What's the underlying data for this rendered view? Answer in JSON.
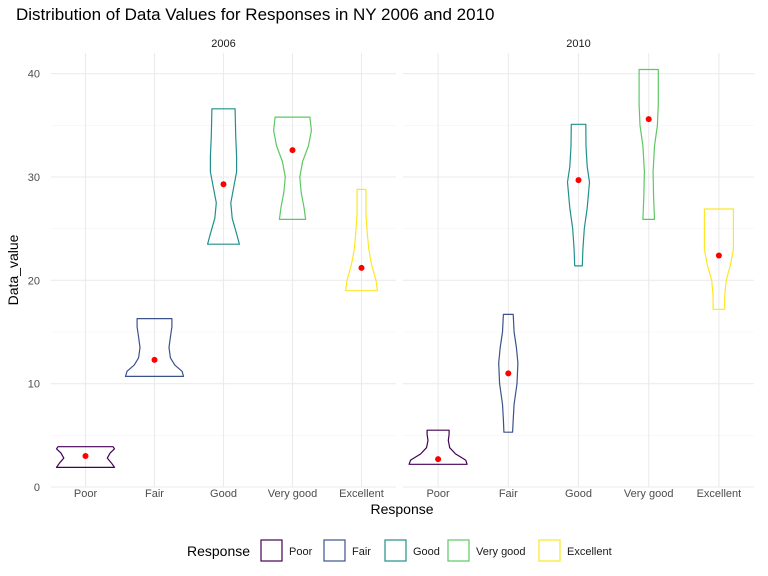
{
  "chart_data": {
    "type": "violin",
    "title": "Distribution of Data Values for Responses in NY 2006 and 2010",
    "xlabel": "Response",
    "ylabel": "Data_value",
    "ylim": [
      0,
      42
    ],
    "yticks": [
      0,
      10,
      20,
      30,
      40
    ],
    "categories": [
      "Poor",
      "Fair",
      "Good",
      "Very good",
      "Excellent"
    ],
    "colors": {
      "Poor": "#440154",
      "Fair": "#3b528b",
      "Good": "#21908c",
      "Very good": "#5dc863",
      "Excellent": "#fde725"
    },
    "point_color": "#ff0000",
    "grid": true,
    "legend": {
      "title": "Response",
      "position": "bottom"
    },
    "facets": [
      {
        "label": "2006",
        "violins": [
          {
            "category": "Poor",
            "min": 1.9,
            "max": 3.9,
            "mean": 3.0,
            "profile": [
              [
                1.9,
                1.0
              ],
              [
                2.3,
                0.9
              ],
              [
                2.8,
                0.75
              ],
              [
                3.3,
                0.85
              ],
              [
                3.7,
                1.0
              ],
              [
                3.9,
                0.95
              ]
            ]
          },
          {
            "category": "Fair",
            "min": 10.7,
            "max": 16.3,
            "mean": 12.3,
            "profile": [
              [
                10.7,
                1.0
              ],
              [
                11.2,
                0.95
              ],
              [
                11.8,
                0.7
              ],
              [
                12.5,
                0.55
              ],
              [
                13.5,
                0.5
              ],
              [
                14.5,
                0.55
              ],
              [
                15.5,
                0.6
              ],
              [
                16.3,
                0.6
              ]
            ]
          },
          {
            "category": "Good",
            "min": 23.5,
            "max": 36.6,
            "mean": 29.3,
            "profile": [
              [
                23.5,
                0.55
              ],
              [
                24.5,
                0.45
              ],
              [
                26.0,
                0.3
              ],
              [
                27.5,
                0.25
              ],
              [
                29.0,
                0.35
              ],
              [
                30.5,
                0.45
              ],
              [
                32.0,
                0.45
              ],
              [
                34.0,
                0.42
              ],
              [
                36.6,
                0.4
              ]
            ]
          },
          {
            "category": "Very good",
            "min": 25.9,
            "max": 35.8,
            "mean": 32.6,
            "profile": [
              [
                25.9,
                0.45
              ],
              [
                27.0,
                0.4
              ],
              [
                28.5,
                0.3
              ],
              [
                30.0,
                0.25
              ],
              [
                31.5,
                0.35
              ],
              [
                33.0,
                0.55
              ],
              [
                34.5,
                0.65
              ],
              [
                35.8,
                0.6
              ]
            ]
          },
          {
            "category": "Excellent",
            "min": 19.0,
            "max": 28.8,
            "mean": 21.2,
            "profile": [
              [
                19.0,
                0.55
              ],
              [
                20.0,
                0.5
              ],
              [
                21.5,
                0.35
              ],
              [
                23.0,
                0.25
              ],
              [
                24.5,
                0.2
              ],
              [
                26.5,
                0.15
              ],
              [
                28.8,
                0.15
              ]
            ]
          }
        ]
      },
      {
        "label": "2010",
        "violins": [
          {
            "category": "Poor",
            "min": 2.2,
            "max": 5.5,
            "mean": 2.7,
            "profile": [
              [
                2.2,
                1.0
              ],
              [
                2.6,
                0.95
              ],
              [
                3.2,
                0.6
              ],
              [
                3.8,
                0.4
              ],
              [
                4.5,
                0.35
              ],
              [
                5.1,
                0.38
              ],
              [
                5.5,
                0.38
              ]
            ]
          },
          {
            "category": "Fair",
            "min": 5.3,
            "max": 16.7,
            "mean": 11.0,
            "profile": [
              [
                5.3,
                0.15
              ],
              [
                6.5,
                0.17
              ],
              [
                8.0,
                0.2
              ],
              [
                10.0,
                0.3
              ],
              [
                12.0,
                0.33
              ],
              [
                13.5,
                0.28
              ],
              [
                15.0,
                0.2
              ],
              [
                16.7,
                0.17
              ]
            ]
          },
          {
            "category": "Good",
            "min": 21.4,
            "max": 35.1,
            "mean": 29.7,
            "profile": [
              [
                21.4,
                0.13
              ],
              [
                23.0,
                0.15
              ],
              [
                25.0,
                0.2
              ],
              [
                27.0,
                0.3
              ],
              [
                29.5,
                0.38
              ],
              [
                31.0,
                0.3
              ],
              [
                33.0,
                0.26
              ],
              [
                35.1,
                0.25
              ]
            ]
          },
          {
            "category": "Very good",
            "min": 25.9,
            "max": 40.4,
            "mean": 35.6,
            "profile": [
              [
                25.9,
                0.2
              ],
              [
                28.0,
                0.17
              ],
              [
                30.5,
                0.15
              ],
              [
                33.0,
                0.2
              ],
              [
                35.0,
                0.3
              ],
              [
                37.0,
                0.33
              ],
              [
                39.0,
                0.33
              ],
              [
                40.4,
                0.33
              ]
            ]
          },
          {
            "category": "Excellent",
            "min": 17.2,
            "max": 26.9,
            "mean": 22.4,
            "profile": [
              [
                17.2,
                0.2
              ],
              [
                18.5,
                0.2
              ],
              [
                20.0,
                0.25
              ],
              [
                21.5,
                0.4
              ],
              [
                23.0,
                0.5
              ],
              [
                24.5,
                0.5
              ],
              [
                26.0,
                0.5
              ],
              [
                26.9,
                0.5
              ]
            ]
          }
        ]
      }
    ]
  }
}
